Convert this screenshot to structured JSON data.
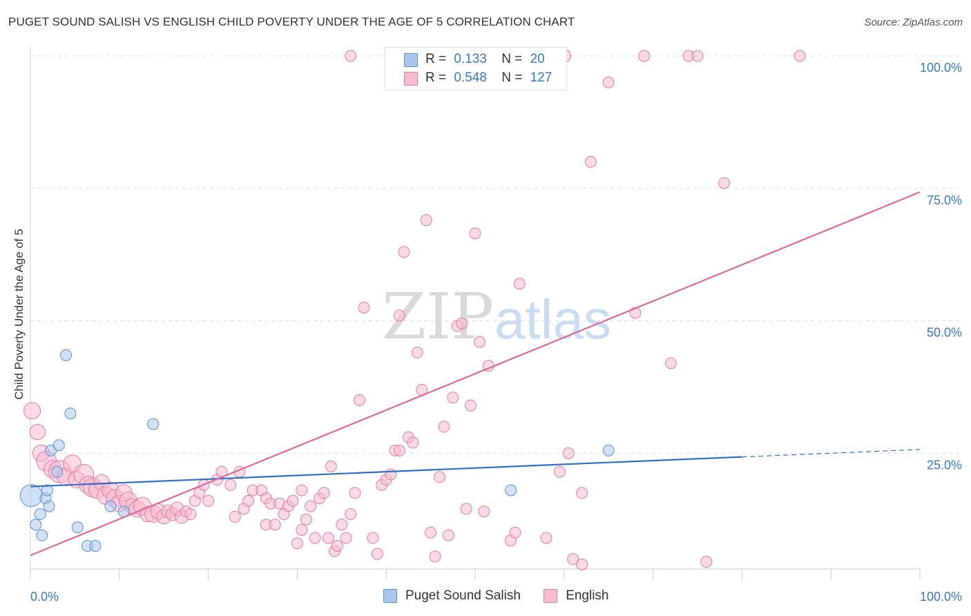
{
  "title": "PUGET SOUND SALISH VS ENGLISH CHILD POVERTY UNDER THE AGE OF 5 CORRELATION CHART",
  "source": "Source: ZipAtlas.com",
  "watermark": {
    "zip": "ZIP",
    "atlas": "atlas"
  },
  "colors": {
    "blue": "#5b8fd6",
    "blue_fill": "#a9c6ee",
    "blue_line": "#2f6fcc",
    "pink": "#e97aa0",
    "pink_fill": "#f7bcd0",
    "pink_line": "#e0679a",
    "tick_text": "#3a78c9"
  },
  "legend_top": {
    "rows": [
      {
        "r_label": "R =",
        "r_value": "0.133",
        "n_label": "N =",
        "n_value": "20"
      },
      {
        "r_label": "R =",
        "r_value": "0.548",
        "n_label": "N =",
        "n_value": "127"
      }
    ]
  },
  "legend_bottom": [
    "Puget Sound Salish",
    "English"
  ],
  "chart_data": {
    "type": "scatter",
    "title": "PUGET SOUND SALISH VS ENGLISH CHILD POVERTY UNDER THE AGE OF 5 CORRELATION CHART",
    "xlabel": "",
    "ylabel": "Child Poverty Under the Age of 5",
    "xlim": [
      0,
      100
    ],
    "ylim": [
      0,
      105
    ],
    "x_tick_labels": [
      "0.0%",
      "100.0%"
    ],
    "y_tick_labels": [
      {
        "value": 25,
        "label": "25.0%"
      },
      {
        "value": 50,
        "label": "50.0%"
      },
      {
        "value": 75,
        "label": "75.0%"
      },
      {
        "value": 100,
        "label": "100.0%"
      }
    ],
    "grid": "horizontal dashed",
    "legend_position": "bottom-center",
    "series": [
      {
        "name": "Puget Sound Salish",
        "color": "#5b8fd6",
        "points": [
          [
            0.1,
            17.0,
            2.0
          ],
          [
            0.6,
            11.5,
            1
          ],
          [
            1.1,
            13.5,
            1
          ],
          [
            1.3,
            9.5,
            1
          ],
          [
            1.7,
            16.5,
            1
          ],
          [
            1.9,
            18.0,
            1
          ],
          [
            2.1,
            15.0,
            1
          ],
          [
            2.3,
            25.5,
            1
          ],
          [
            3.0,
            21.5,
            1
          ],
          [
            3.2,
            26.5,
            1
          ],
          [
            4.0,
            43.5,
            1
          ],
          [
            4.5,
            32.5,
            1
          ],
          [
            5.3,
            11.0,
            1
          ],
          [
            6.4,
            7.5,
            1
          ],
          [
            7.3,
            7.5,
            1
          ],
          [
            9.0,
            15.0,
            1
          ],
          [
            10.5,
            14.0,
            1
          ],
          [
            13.8,
            30.5,
            1
          ],
          [
            54.0,
            18.0,
            1
          ],
          [
            65.0,
            25.5,
            1
          ]
        ],
        "trend": {
          "x1": 0,
          "y1": 18.7,
          "x2": 80.0,
          "y2": 24.3,
          "dash_to_x": 100,
          "dash_to_y": 25.7
        }
      },
      {
        "name": "English",
        "color": "#e97aa0",
        "points": [
          [
            0.2,
            33.0,
            1.5
          ],
          [
            0.8,
            29.0,
            1.4
          ],
          [
            1.2,
            25.0,
            1.5
          ],
          [
            1.8,
            23.5,
            1.8
          ],
          [
            2.5,
            22.0,
            1.6
          ],
          [
            3.3,
            21.5,
            2.0
          ],
          [
            4.0,
            20.5,
            1.6
          ],
          [
            4.7,
            23.0,
            1.6
          ],
          [
            5.2,
            20.0,
            1.5
          ],
          [
            6.0,
            21.0,
            1.8
          ],
          [
            6.5,
            19.0,
            1.6
          ],
          [
            7.0,
            18.5,
            1.7
          ],
          [
            7.5,
            18.0,
            1.5
          ],
          [
            8.0,
            19.5,
            1.4
          ],
          [
            8.5,
            17.0,
            1.6
          ],
          [
            9.0,
            18.0,
            1.5
          ],
          [
            9.5,
            16.5,
            1.6
          ],
          [
            10.0,
            15.5,
            1.5
          ],
          [
            10.5,
            17.5,
            1.5
          ],
          [
            11.0,
            16.0,
            1.6
          ],
          [
            11.5,
            15.0,
            1.4
          ],
          [
            12.0,
            14.5,
            1.5
          ],
          [
            12.6,
            15.0,
            1.6
          ],
          [
            13.2,
            13.5,
            1.4
          ],
          [
            13.8,
            13.5,
            1.5
          ],
          [
            14.4,
            14.0,
            1.4
          ],
          [
            15.0,
            13.0,
            1.3
          ],
          [
            15.5,
            14.0,
            1.2
          ],
          [
            16.0,
            13.5,
            1.2
          ],
          [
            16.5,
            14.5,
            1.2
          ],
          [
            17.0,
            13.0,
            1.2
          ],
          [
            17.5,
            14.0,
            1.0
          ],
          [
            18.0,
            13.5,
            1
          ],
          [
            18.5,
            16.0,
            1
          ],
          [
            19.0,
            17.5,
            1
          ],
          [
            19.5,
            19.0,
            1
          ],
          [
            20.0,
            16.0,
            1
          ],
          [
            21.0,
            20.0,
            1
          ],
          [
            21.5,
            21.5,
            1
          ],
          [
            22.5,
            19.0,
            1
          ],
          [
            23.0,
            13.0,
            1
          ],
          [
            23.5,
            21.5,
            1
          ],
          [
            24.0,
            14.5,
            1
          ],
          [
            24.5,
            16.0,
            1
          ],
          [
            25.0,
            18.0,
            1
          ],
          [
            26.0,
            18.0,
            1
          ],
          [
            26.5,
            11.5,
            1
          ],
          [
            26.5,
            16.5,
            1
          ],
          [
            27.0,
            15.5,
            1
          ],
          [
            27.5,
            11.5,
            1
          ],
          [
            28.0,
            15.5,
            1
          ],
          [
            28.5,
            13.5,
            1
          ],
          [
            29.0,
            15.0,
            1
          ],
          [
            29.5,
            16.0,
            1
          ],
          [
            30.0,
            8.0,
            1
          ],
          [
            30.5,
            10.5,
            1
          ],
          [
            30.5,
            18.0,
            1
          ],
          [
            31.0,
            12.5,
            1
          ],
          [
            31.5,
            15.0,
            1
          ],
          [
            32.0,
            9.0,
            1
          ],
          [
            32.5,
            16.5,
            1
          ],
          [
            33.0,
            17.5,
            1
          ],
          [
            33.5,
            9.0,
            1
          ],
          [
            33.8,
            22.5,
            1
          ],
          [
            34.2,
            6.5,
            1
          ],
          [
            34.5,
            7.5,
            1
          ],
          [
            35.0,
            11.5,
            1
          ],
          [
            35.5,
            9.0,
            1
          ],
          [
            36.0,
            13.5,
            1
          ],
          [
            36.5,
            17.5,
            1
          ],
          [
            37.0,
            35.0,
            1
          ],
          [
            37.5,
            52.5,
            1
          ],
          [
            38.5,
            9.0,
            1
          ],
          [
            39.0,
            6.0,
            1
          ],
          [
            39.5,
            19.0,
            1
          ],
          [
            40.0,
            20.0,
            1
          ],
          [
            40.5,
            21.0,
            1
          ],
          [
            41.0,
            25.5,
            1
          ],
          [
            41.5,
            51.0,
            1
          ],
          [
            41.5,
            25.5,
            1
          ],
          [
            42.0,
            63.0,
            1
          ],
          [
            42.5,
            28.0,
            1
          ],
          [
            43.0,
            27.0,
            1
          ],
          [
            43.5,
            44.0,
            1
          ],
          [
            44.0,
            37.0,
            1
          ],
          [
            44.5,
            69.0,
            1
          ],
          [
            45.0,
            10.0,
            1
          ],
          [
            45.5,
            5.5,
            1
          ],
          [
            46.0,
            20.5,
            1
          ],
          [
            46.5,
            30.0,
            1
          ],
          [
            47.0,
            9.5,
            1
          ],
          [
            47.5,
            35.5,
            1
          ],
          [
            48.0,
            49.0,
            1
          ],
          [
            48.5,
            49.5,
            1
          ],
          [
            49.0,
            14.5,
            1
          ],
          [
            49.5,
            34.0,
            1
          ],
          [
            50.0,
            66.5,
            1
          ],
          [
            50.5,
            46.0,
            1
          ],
          [
            51.0,
            14.0,
            1
          ],
          [
            51.5,
            41.5,
            1
          ],
          [
            53.0,
            100.0,
            1.2
          ],
          [
            54.0,
            8.5,
            1
          ],
          [
            54.5,
            10.0,
            1
          ],
          [
            55.0,
            57.0,
            1
          ],
          [
            55.5,
            100.0,
            1
          ],
          [
            56.5,
            100.0,
            1.3
          ],
          [
            58.0,
            9.0,
            1
          ],
          [
            59.5,
            21.5,
            1
          ],
          [
            60.0,
            100.0,
            1.2
          ],
          [
            60.5,
            25.0,
            1
          ],
          [
            61.0,
            5.0,
            1
          ],
          [
            62.0,
            4.0,
            1
          ],
          [
            62.0,
            17.5,
            1
          ],
          [
            63.0,
            80.0,
            1
          ],
          [
            65.0,
            95.0,
            1
          ],
          [
            68.0,
            51.5,
            1
          ],
          [
            69.0,
            100.0,
            1
          ],
          [
            72.0,
            42.0,
            1
          ],
          [
            74.0,
            100.0,
            1
          ],
          [
            75.0,
            100.0,
            1
          ],
          [
            76.0,
            4.5,
            1
          ],
          [
            78.0,
            76.0,
            1
          ],
          [
            86.5,
            100.0,
            1
          ],
          [
            57.5,
            100.0,
            1
          ],
          [
            53.5,
            100.0,
            1
          ],
          [
            47.0,
            100.0,
            1
          ],
          [
            36.0,
            100.0,
            1
          ]
        ],
        "trend": {
          "x1": 0,
          "y1": 5.7,
          "x2": 100,
          "y2": 74.3
        }
      }
    ]
  }
}
